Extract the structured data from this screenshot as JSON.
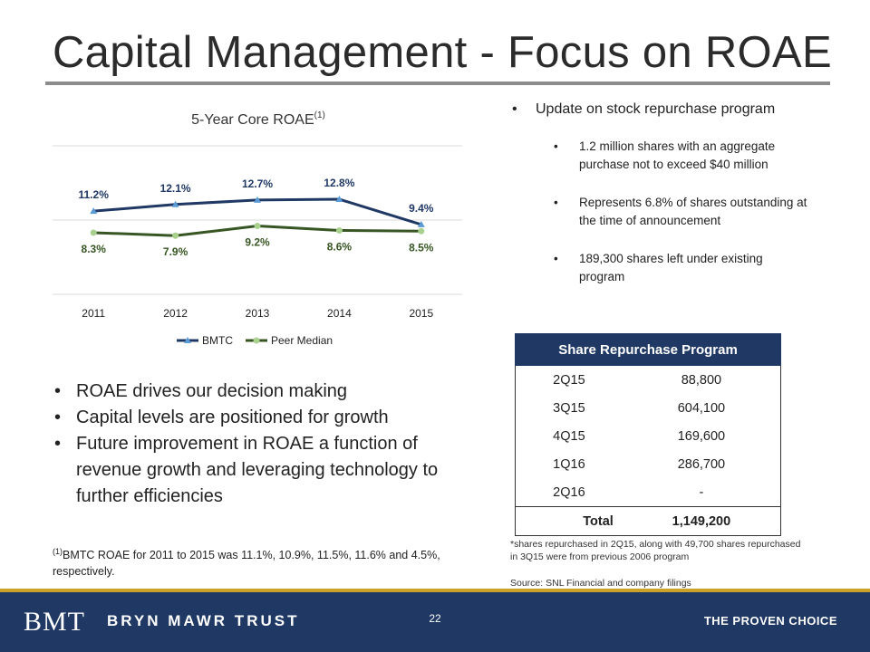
{
  "slide": {
    "title": "Capital Management - Focus on ROAE",
    "page_number": "22"
  },
  "chart_data": {
    "type": "line",
    "title": "5-Year Core ROAE",
    "title_sup": "(1)",
    "categories": [
      "2011",
      "2012",
      "2013",
      "2014",
      "2015"
    ],
    "ylim": [
      0,
      20
    ],
    "grid": true,
    "legend_position": "bottom",
    "series": [
      {
        "name": "BMTC",
        "values": [
          11.2,
          12.1,
          12.7,
          12.8,
          9.4
        ],
        "labels": [
          "11.2%",
          "12.1%",
          "12.7%",
          "12.8%",
          "9.4%"
        ],
        "color": "#1f3864",
        "marker_color": "#5b9bd5",
        "marker": "triangle"
      },
      {
        "name": "Peer Median",
        "values": [
          8.3,
          7.9,
          9.2,
          8.6,
          8.5
        ],
        "labels": [
          "8.3%",
          "7.9%",
          "9.2%",
          "8.6%",
          "8.5%"
        ],
        "color": "#375623",
        "marker_color": "#a9d18e",
        "marker": "circle"
      }
    ]
  },
  "left_bullets": [
    "ROAE drives our decision making",
    "Capital levels are positioned for growth",
    "Future improvement in ROAE a function of revenue growth and leveraging technology to further efficiencies"
  ],
  "footnote": {
    "sup": "(1)",
    "text": "BMTC ROAE for 2011 to 2015 was 11.1%, 10.9%, 11.5%, 11.6% and 4.5%, respectively."
  },
  "right_list": {
    "main": "Update on stock repurchase program",
    "subs": [
      "1.2 million shares with an aggregate purchase not to exceed $40 million",
      "Represents 6.8% of shares outstanding  at the time of announcement",
      "189,300 shares left under existing program"
    ]
  },
  "repurchase_table": {
    "header": "Share Repurchase Program",
    "rows": [
      {
        "period": "2Q15",
        "shares": "88,800"
      },
      {
        "period": "3Q15",
        "shares": "604,100"
      },
      {
        "period": "4Q15",
        "shares": "169,600"
      },
      {
        "period": "1Q16",
        "shares": "286,700"
      },
      {
        "period": "2Q16",
        "shares": "-"
      }
    ],
    "total_label": "Total",
    "total_value": "1,149,200"
  },
  "table_note": "*shares repurchased in 2Q15, along with 49,700 shares repurchased in 3Q15 were from previous 2006 program",
  "source": "Source: SNL Financial and company filings",
  "footer": {
    "logo_mark": "BMT",
    "logo_word": "BRYN MAWR TRUST",
    "tagline": "THE PROVEN CHOICE"
  },
  "colors": {
    "brand_navy": "#1f3864",
    "accent_gold": "#c9a227"
  }
}
